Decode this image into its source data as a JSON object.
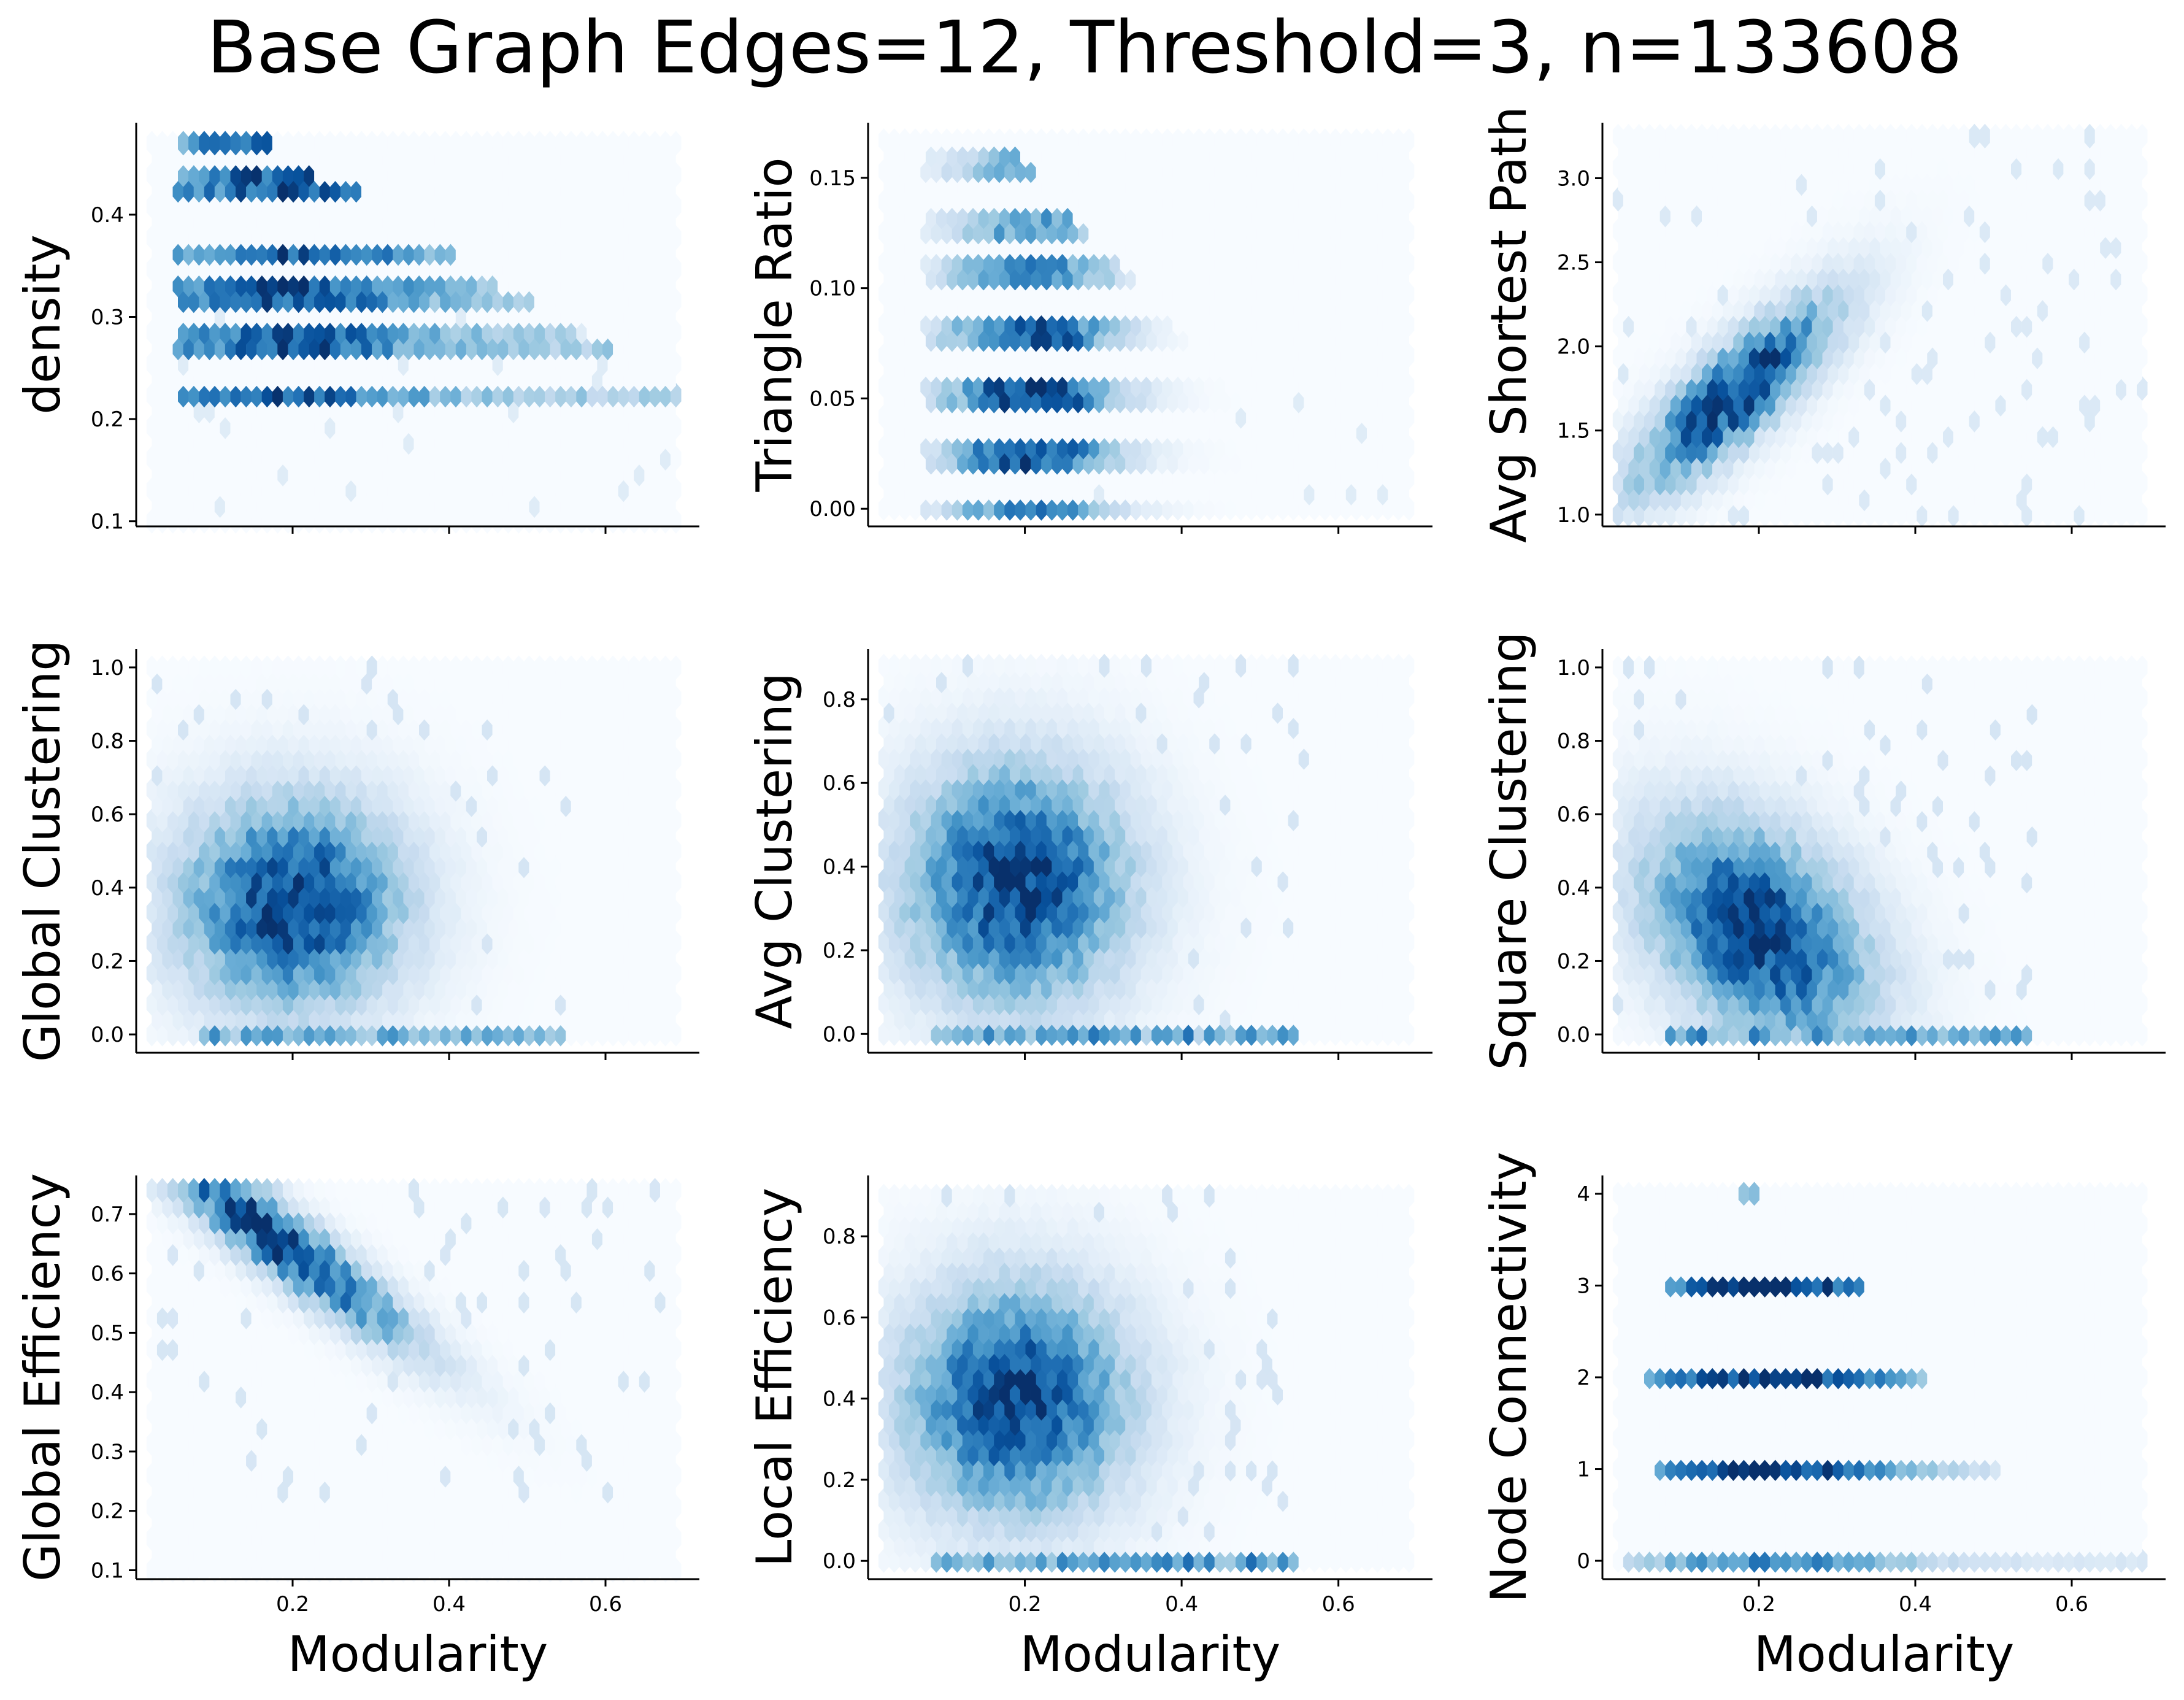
{
  "figure": {
    "title": "Base Graph Edges=12, Threshold=3, n=133608",
    "colormap": [
      "#f7fbff",
      "#deebf7",
      "#c6dbef",
      "#9ecae1",
      "#6baed6",
      "#4292c6",
      "#2171b5",
      "#08519c",
      "#08306b"
    ]
  },
  "chart_data": [
    {
      "type": "heatmap",
      "subtype": "hexbin",
      "xlabel": "",
      "ylabel": "density",
      "xlim": [
        0.0,
        0.72
      ],
      "ylim": [
        0.095,
        0.49
      ],
      "xticks": [],
      "yticks": [
        "0.1",
        "0.2",
        "0.3",
        "0.4"
      ],
      "ytick_values": [
        0.1,
        0.2,
        0.3,
        0.4
      ],
      "extent": {
        "x": [
          0.02,
          0.69
        ],
        "y": [
          0.1,
          0.47
        ]
      },
      "pattern": "bands_decreasing",
      "bands": [
        0.47,
        0.445,
        0.42,
        0.4,
        0.385,
        0.36,
        0.335,
        0.315,
        0.29,
        0.265,
        0.245,
        0.22,
        0.2
      ]
    },
    {
      "type": "heatmap",
      "subtype": "hexbin",
      "xlabel": "",
      "ylabel": "Triangle Ratio",
      "xlim": [
        0.0,
        0.72
      ],
      "ylim": [
        -0.008,
        0.175
      ],
      "xticks": [],
      "yticks": [
        "0.00",
        "0.05",
        "0.10",
        "0.15"
      ],
      "ytick_values": [
        0.0,
        0.05,
        0.1,
        0.15
      ],
      "extent": {
        "x": [
          0.02,
          0.69
        ],
        "y": [
          0.0,
          0.167
        ]
      },
      "pattern": "bands_triangle"
    },
    {
      "type": "heatmap",
      "subtype": "hexbin",
      "xlabel": "",
      "ylabel": "Avg Shortest Path",
      "xlim": [
        0.0,
        0.72
      ],
      "ylim": [
        0.93,
        3.33
      ],
      "xticks": [],
      "yticks": [
        "1.0",
        "1.5",
        "2.0",
        "2.5",
        "3.0"
      ],
      "ytick_values": [
        1.0,
        1.5,
        2.0,
        2.5,
        3.0
      ],
      "extent": {
        "x": [
          0.02,
          0.69
        ],
        "y": [
          1.0,
          3.25
        ]
      },
      "pattern": "positive_correlation",
      "center": [
        0.17,
        1.72
      ]
    },
    {
      "type": "heatmap",
      "subtype": "hexbin",
      "xlabel": "",
      "ylabel": "Global Clustering",
      "xlim": [
        0.0,
        0.72
      ],
      "ylim": [
        -0.05,
        1.05
      ],
      "xticks": [],
      "yticks": [
        "0.0",
        "0.2",
        "0.4",
        "0.6",
        "0.8",
        "1.0"
      ],
      "ytick_values": [
        0.0,
        0.2,
        0.4,
        0.6,
        0.8,
        1.0
      ],
      "extent": {
        "x": [
          0.02,
          0.69
        ],
        "y": [
          0.0,
          1.0
        ]
      },
      "pattern": "blob",
      "center": [
        0.2,
        0.36
      ]
    },
    {
      "type": "heatmap",
      "subtype": "hexbin",
      "xlabel": "",
      "ylabel": "Avg Clustering",
      "xlim": [
        0.0,
        0.72
      ],
      "ylim": [
        -0.045,
        0.92
      ],
      "xticks": [],
      "yticks": [
        "0.0",
        "0.2",
        "0.4",
        "0.6",
        "0.8"
      ],
      "ytick_values": [
        0.0,
        0.2,
        0.4,
        0.6,
        0.8
      ],
      "extent": {
        "x": [
          0.02,
          0.69
        ],
        "y": [
          0.0,
          0.88
        ]
      },
      "pattern": "blob",
      "center": [
        0.19,
        0.36
      ]
    },
    {
      "type": "heatmap",
      "subtype": "hexbin",
      "xlabel": "",
      "ylabel": "Square Clustering",
      "xlim": [
        0.0,
        0.72
      ],
      "ylim": [
        -0.05,
        1.05
      ],
      "xticks": [],
      "yticks": [
        "0.0",
        "0.2",
        "0.4",
        "0.6",
        "0.8",
        "1.0"
      ],
      "ytick_values": [
        0.0,
        0.2,
        0.4,
        0.6,
        0.8,
        1.0
      ],
      "extent": {
        "x": [
          0.02,
          0.69
        ],
        "y": [
          0.0,
          1.0
        ]
      },
      "pattern": "blob_negative",
      "center": [
        0.2,
        0.28
      ]
    },
    {
      "type": "heatmap",
      "subtype": "hexbin",
      "xlabel": "Modularity",
      "ylabel": "Global Efficiency",
      "xlim": [
        0.0,
        0.72
      ],
      "ylim": [
        0.085,
        0.765
      ],
      "xticks": [
        "0.2",
        "0.4",
        "0.6"
      ],
      "xtick_values": [
        0.2,
        0.4,
        0.6
      ],
      "yticks": [
        "0.1",
        "0.2",
        "0.3",
        "0.4",
        "0.5",
        "0.6",
        "0.7"
      ],
      "ytick_values": [
        0.1,
        0.2,
        0.3,
        0.4,
        0.5,
        0.6,
        0.7
      ],
      "extent": {
        "x": [
          0.02,
          0.69
        ],
        "y": [
          0.1,
          0.74
        ]
      },
      "pattern": "negative_correlation",
      "center": [
        0.18,
        0.66
      ]
    },
    {
      "type": "heatmap",
      "subtype": "hexbin",
      "xlabel": "Modularity",
      "ylabel": "Local Efficiency",
      "xlim": [
        0.0,
        0.72
      ],
      "ylim": [
        -0.045,
        0.95
      ],
      "xticks": [
        "0.2",
        "0.4",
        "0.6"
      ],
      "xtick_values": [
        0.2,
        0.4,
        0.6
      ],
      "yticks": [
        "0.0",
        "0.2",
        "0.4",
        "0.6",
        "0.8"
      ],
      "ytick_values": [
        0.0,
        0.2,
        0.4,
        0.6,
        0.8
      ],
      "extent": {
        "x": [
          0.02,
          0.69
        ],
        "y": [
          0.0,
          0.9
        ]
      },
      "pattern": "blob",
      "center": [
        0.19,
        0.4
      ]
    },
    {
      "type": "heatmap",
      "subtype": "hexbin",
      "xlabel": "Modularity",
      "ylabel": "Node Connectivity",
      "xlim": [
        0.0,
        0.72
      ],
      "ylim": [
        -0.2,
        4.2
      ],
      "xticks": [
        "0.2",
        "0.4",
        "0.6"
      ],
      "xtick_values": [
        0.2,
        0.4,
        0.6
      ],
      "yticks": [
        "0",
        "1",
        "2",
        "3",
        "4"
      ],
      "ytick_values": [
        0,
        1,
        2,
        3,
        4
      ],
      "extent": {
        "x": [
          0.02,
          0.69
        ],
        "y": [
          0.0,
          4.0
        ]
      },
      "pattern": "connectivity_bands",
      "bands": [
        {
          "y": 0,
          "x": [
            0.04,
            0.69
          ]
        },
        {
          "y": 1,
          "x": [
            0.08,
            0.5
          ]
        },
        {
          "y": 2,
          "x": [
            0.06,
            0.41
          ]
        },
        {
          "y": 3,
          "x": [
            0.09,
            0.32
          ]
        },
        {
          "y": 4,
          "x": [
            0.19,
            0.19
          ]
        }
      ]
    }
  ]
}
